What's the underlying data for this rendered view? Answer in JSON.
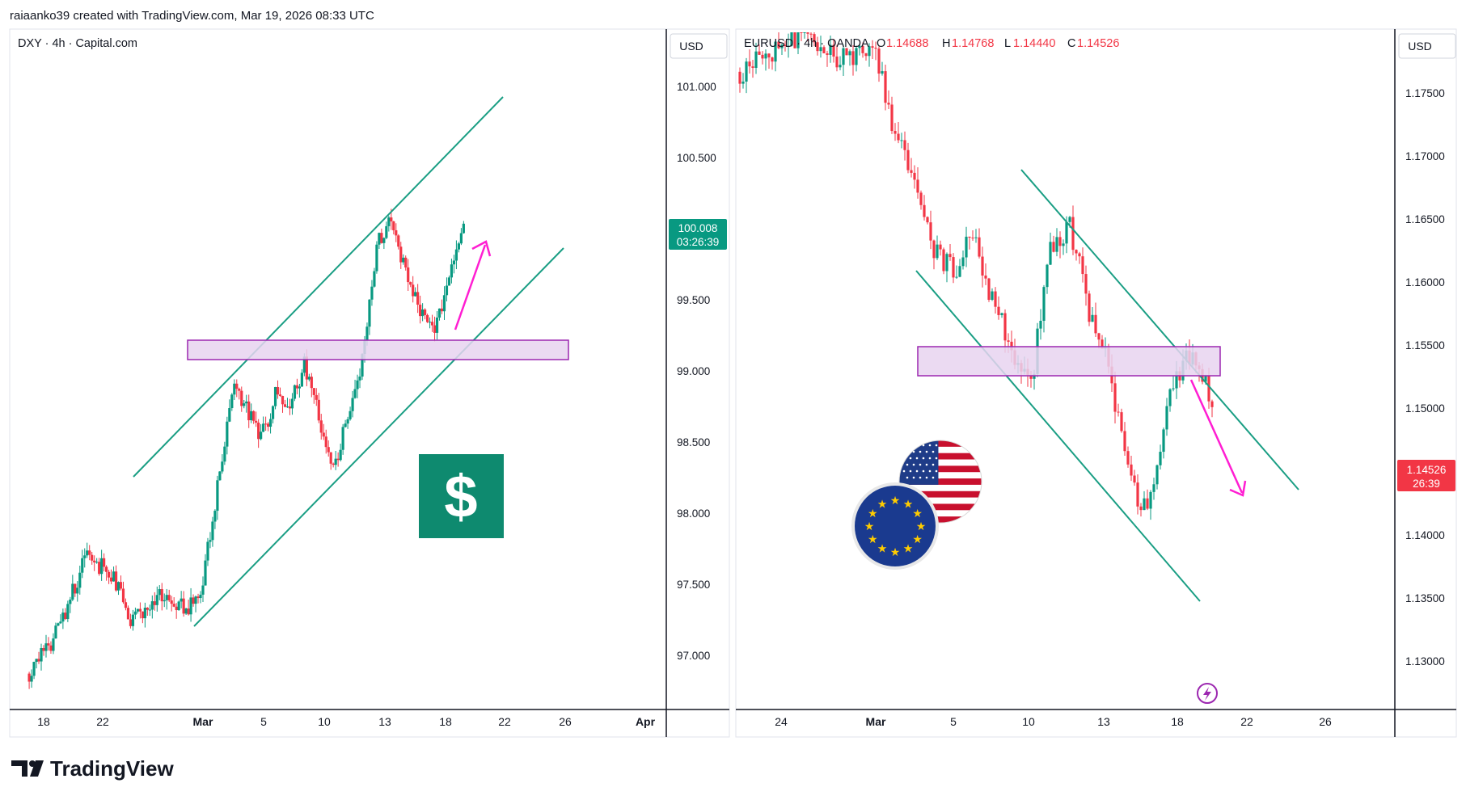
{
  "header": {
    "credit": "raiaanko39 created with TradingView.com, Mar 19, 2026 08:33 UTC"
  },
  "footer": {
    "brand": "TradingView"
  },
  "colors": {
    "up": "#089981",
    "down": "#f23645",
    "channel": "#1a9e84",
    "zone_fill": "#e8d4f0",
    "zone_stroke": "#9c27b0",
    "arrow": "#ff1ed2",
    "badge_dxy": "#089981",
    "badge_eur": "#f23645"
  },
  "left": {
    "title": "DXY · 4h · Capital.com",
    "currency": "USD",
    "price_labels": [
      "101.000",
      "100.500",
      "99.500",
      "99.000",
      "98.500",
      "98.000",
      "97.500",
      "97.000"
    ],
    "last_price": "100.008",
    "countdown": "03:26:39",
    "date_labels": [
      "18",
      "22",
      "Mar",
      "5",
      "10",
      "13",
      "18",
      "22",
      "26",
      "Apr"
    ],
    "icon": "dollar-sign-icon",
    "icon_glyph": "$"
  },
  "right": {
    "title": "EURUSD · 4h · OANDA",
    "ohlc": {
      "o_label": "O",
      "o": "1.14688",
      "h_label": "H",
      "h": "1.14768",
      "l_label": "L",
      "l": "1.14440",
      "c_label": "C",
      "c": "1.14526"
    },
    "currency": "USD",
    "price_labels": [
      "1.17500",
      "1.17000",
      "1.16500",
      "1.16000",
      "1.15500",
      "1.15000",
      "1.14000",
      "1.13500",
      "1.13000"
    ],
    "last_price": "1.14526",
    "countdown": "26:39",
    "date_labels": [
      "24",
      "Mar",
      "5",
      "10",
      "13",
      "18",
      "22",
      "26"
    ],
    "icons": [
      "us-flag-icon",
      "eu-flag-icon",
      "lightning-icon"
    ]
  },
  "chart_data": [
    {
      "type": "candlestick",
      "title": "DXY · 4h · Capital.com",
      "ylim": [
        96.7,
        101.5
      ],
      "x_ticks": [
        "18",
        "22",
        "Mar",
        "5",
        "10",
        "13",
        "18",
        "22",
        "26",
        "Apr"
      ],
      "close_path": [
        [
          "Feb 17",
          96.9
        ],
        [
          "Feb 19",
          97.2
        ],
        [
          "Feb 21",
          97.75
        ],
        [
          "Feb 23",
          97.55
        ],
        [
          "Feb 24",
          97.25
        ],
        [
          "Feb 26",
          97.45
        ],
        [
          "Feb 28",
          97.35
        ],
        [
          "Mar 1",
          97.55
        ],
        [
          "Mar 2",
          98.2
        ],
        [
          "Mar 3",
          98.9
        ],
        [
          "Mar 4",
          98.75
        ],
        [
          "Mar 5",
          98.55
        ],
        [
          "Mar 6",
          98.85
        ],
        [
          "Mar 7",
          98.75
        ],
        [
          "Mar 8",
          99.1
        ],
        [
          "Mar 9",
          98.7
        ],
        [
          "Mar 10",
          98.35
        ],
        [
          "Mar 11",
          98.7
        ],
        [
          "Mar 12",
          99.1
        ],
        [
          "Mar 13",
          99.9
        ],
        [
          "Mar 14",
          100.1
        ],
        [
          "Mar 15",
          99.7
        ],
        [
          "Mar 16",
          99.45
        ],
        [
          "Mar 17",
          99.3
        ],
        [
          "Mar 18",
          99.7
        ],
        [
          "Mar 19",
          100.008
        ]
      ],
      "annotations": {
        "channel_upper": [
          [
            "Feb 24",
            98.6
          ],
          [
            "Mar 18",
            101.1
          ]
        ],
        "channel_lower": [
          [
            "Mar 1",
            97.25
          ],
          [
            "Mar 23",
            99.9
          ]
        ],
        "zone": {
          "from": 99.07,
          "to": 99.22
        },
        "arrow": {
          "from": [
            "Mar 18",
            99.3
          ],
          "to": [
            "Mar 19",
            99.85
          ],
          "direction": "up"
        }
      }
    },
    {
      "type": "candlestick",
      "title": "EURUSD · 4h · OANDA",
      "ylim": [
        1.125,
        1.1785
      ],
      "x_ticks": [
        "24",
        "Mar",
        "5",
        "10",
        "13",
        "18",
        "22",
        "26"
      ],
      "open": 1.14688,
      "high": 1.14768,
      "low": 1.1444,
      "close": 1.14526,
      "close_path": [
        [
          "Feb 22",
          1.177
        ],
        [
          "Feb 25",
          1.18
        ],
        [
          "Feb 27",
          1.178
        ],
        [
          "Mar 1",
          1.179
        ],
        [
          "Mar 2",
          1.172
        ],
        [
          "Mar 3",
          1.168
        ],
        [
          "Mar 4",
          1.163
        ],
        [
          "Mar 5",
          1.161
        ],
        [
          "Mar 6",
          1.164
        ],
        [
          "Mar 7",
          1.159
        ],
        [
          "Mar 8",
          1.155
        ],
        [
          "Mar 9",
          1.152
        ],
        [
          "Mar 10",
          1.163
        ],
        [
          "Mar 11",
          1.165
        ],
        [
          "Mar 12",
          1.158
        ],
        [
          "Mar 13",
          1.154
        ],
        [
          "Mar 14",
          1.145
        ],
        [
          "Mar 15",
          1.142
        ],
        [
          "Mar 16",
          1.15
        ],
        [
          "Mar 17",
          1.155
        ],
        [
          "Mar 18",
          1.153
        ],
        [
          "Mar 19",
          1.14526
        ]
      ],
      "annotations": {
        "channel_upper": [
          [
            "Mar 10",
            1.1695
          ],
          [
            "Mar 25",
            1.1438
          ]
        ],
        "channel_lower": [
          [
            "Mar 3",
            1.1605
          ],
          [
            "Mar 20",
            1.135
          ]
        ],
        "zone": {
          "from": 1.1528,
          "to": 1.1552
        },
        "arrow": {
          "from": [
            "Mar 19",
            1.152
          ],
          "to": [
            "Mar 20",
            1.144
          ],
          "direction": "down"
        }
      }
    }
  ]
}
